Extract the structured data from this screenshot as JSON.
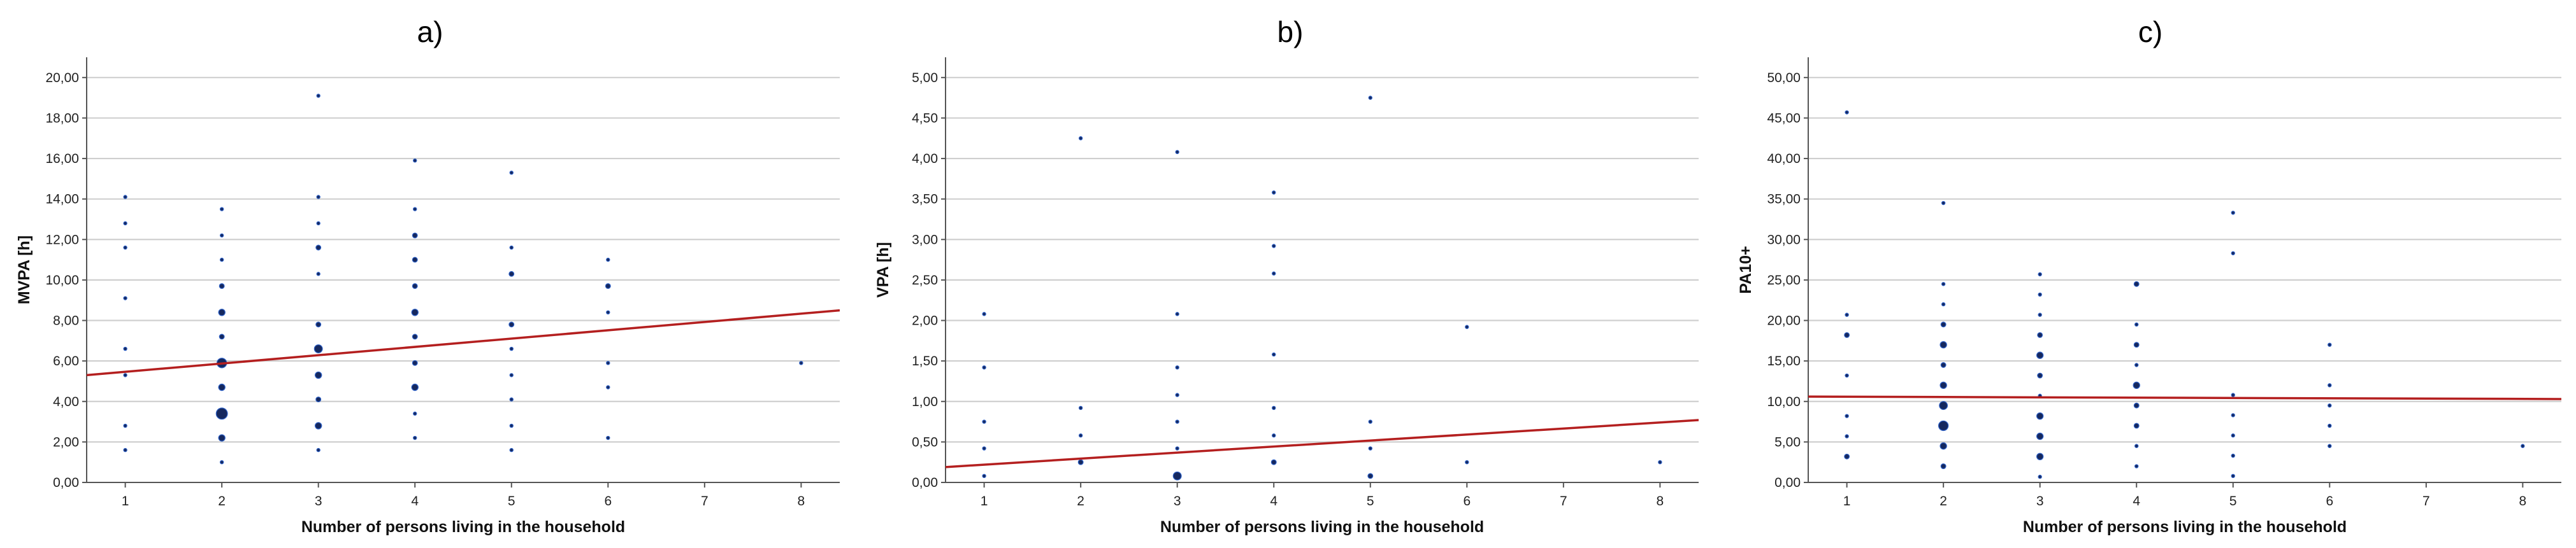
{
  "figure": {
    "background": "#ffffff",
    "point_fill": "#15285f",
    "point_stroke": "#2f62c8",
    "fit_line_color": "#b41f1f",
    "grid_color": "#cfcfcf"
  },
  "chart_data": [
    {
      "type": "scatter",
      "title": "a)",
      "xlabel": "Number of persons living in the household",
      "ylabel": "MVPA [h]",
      "xlim": [
        0.6,
        8.4
      ],
      "ylim": [
        0,
        21
      ],
      "x_ticks": [
        1,
        2,
        3,
        4,
        5,
        6,
        7,
        8
      ],
      "x_tick_labels": [
        "1",
        "2",
        "3",
        "4",
        "5",
        "6",
        "7",
        "8"
      ],
      "y_ticks": [
        0,
        2,
        4,
        6,
        8,
        10,
        12,
        14,
        16,
        18,
        20
      ],
      "y_tick_labels": [
        "0,00",
        "2,00",
        "4,00",
        "6,00",
        "8,00",
        "10,00",
        "12,00",
        "14,00",
        "16,00",
        "18,00",
        "20,00"
      ],
      "grid": "horizontal",
      "fit_line": {
        "x": [
          0.6,
          8.4
        ],
        "y": [
          5.3,
          8.5
        ]
      },
      "points": [
        {
          "x": 1,
          "y": 14.1,
          "n": 1
        },
        {
          "x": 1,
          "y": 12.8,
          "n": 1
        },
        {
          "x": 1,
          "y": 11.6,
          "n": 1
        },
        {
          "x": 1,
          "y": 9.1,
          "n": 1
        },
        {
          "x": 1,
          "y": 6.6,
          "n": 1
        },
        {
          "x": 1,
          "y": 5.3,
          "n": 1
        },
        {
          "x": 1,
          "y": 2.8,
          "n": 1
        },
        {
          "x": 1,
          "y": 1.6,
          "n": 1
        },
        {
          "x": 2,
          "y": 13.5,
          "n": 1
        },
        {
          "x": 2,
          "y": 12.2,
          "n": 1
        },
        {
          "x": 2,
          "y": 11.0,
          "n": 1
        },
        {
          "x": 2,
          "y": 9.7,
          "n": 2
        },
        {
          "x": 2,
          "y": 8.4,
          "n": 3
        },
        {
          "x": 2,
          "y": 7.2,
          "n": 2
        },
        {
          "x": 2,
          "y": 5.9,
          "n": 5
        },
        {
          "x": 2,
          "y": 4.7,
          "n": 3
        },
        {
          "x": 2,
          "y": 3.4,
          "n": 6
        },
        {
          "x": 2,
          "y": 2.2,
          "n": 3
        },
        {
          "x": 2,
          "y": 1.0,
          "n": 1
        },
        {
          "x": 3,
          "y": 19.1,
          "n": 1
        },
        {
          "x": 3,
          "y": 14.1,
          "n": 1
        },
        {
          "x": 3,
          "y": 12.8,
          "n": 1
        },
        {
          "x": 3,
          "y": 11.6,
          "n": 2
        },
        {
          "x": 3,
          "y": 10.3,
          "n": 1
        },
        {
          "x": 3,
          "y": 7.8,
          "n": 2
        },
        {
          "x": 3,
          "y": 6.6,
          "n": 4
        },
        {
          "x": 3,
          "y": 5.3,
          "n": 3
        },
        {
          "x": 3,
          "y": 4.1,
          "n": 2
        },
        {
          "x": 3,
          "y": 2.8,
          "n": 3
        },
        {
          "x": 3,
          "y": 1.6,
          "n": 1
        },
        {
          "x": 4,
          "y": 15.9,
          "n": 1
        },
        {
          "x": 4,
          "y": 13.5,
          "n": 1
        },
        {
          "x": 4,
          "y": 12.2,
          "n": 2
        },
        {
          "x": 4,
          "y": 11.0,
          "n": 2
        },
        {
          "x": 4,
          "y": 9.7,
          "n": 2
        },
        {
          "x": 4,
          "y": 8.4,
          "n": 3
        },
        {
          "x": 4,
          "y": 7.2,
          "n": 2
        },
        {
          "x": 4,
          "y": 5.9,
          "n": 2
        },
        {
          "x": 4,
          "y": 4.7,
          "n": 3
        },
        {
          "x": 4,
          "y": 3.4,
          "n": 1
        },
        {
          "x": 4,
          "y": 2.2,
          "n": 1
        },
        {
          "x": 5,
          "y": 15.3,
          "n": 1
        },
        {
          "x": 5,
          "y": 11.6,
          "n": 1
        },
        {
          "x": 5,
          "y": 10.3,
          "n": 2
        },
        {
          "x": 5,
          "y": 7.8,
          "n": 2
        },
        {
          "x": 5,
          "y": 6.6,
          "n": 1
        },
        {
          "x": 5,
          "y": 5.3,
          "n": 1
        },
        {
          "x": 5,
          "y": 4.1,
          "n": 1
        },
        {
          "x": 5,
          "y": 2.8,
          "n": 1
        },
        {
          "x": 5,
          "y": 1.6,
          "n": 1
        },
        {
          "x": 6,
          "y": 11.0,
          "n": 1
        },
        {
          "x": 6,
          "y": 9.7,
          "n": 2
        },
        {
          "x": 6,
          "y": 8.4,
          "n": 1
        },
        {
          "x": 6,
          "y": 5.9,
          "n": 1
        },
        {
          "x": 6,
          "y": 4.7,
          "n": 1
        },
        {
          "x": 6,
          "y": 2.2,
          "n": 1
        },
        {
          "x": 8,
          "y": 5.9,
          "n": 1
        }
      ]
    },
    {
      "type": "scatter",
      "title": "b)",
      "xlabel": "Number of persons living in the household",
      "ylabel": "VPA [h]",
      "xlim": [
        0.6,
        8.4
      ],
      "ylim": [
        0,
        5.25
      ],
      "x_ticks": [
        1,
        2,
        3,
        4,
        5,
        6,
        7,
        8
      ],
      "x_tick_labels": [
        "1",
        "2",
        "3",
        "4",
        "5",
        "6",
        "7",
        "8"
      ],
      "y_ticks": [
        0,
        0.5,
        1,
        1.5,
        2,
        2.5,
        3,
        3.5,
        4,
        4.5,
        5
      ],
      "y_tick_labels": [
        "0,00",
        "0,50",
        "1,00",
        "1,50",
        "2,00",
        "2,50",
        "3,00",
        "3,50",
        "4,00",
        "4,50",
        "5,00"
      ],
      "grid": "horizontal",
      "fit_line": {
        "x": [
          0.6,
          8.4
        ],
        "y": [
          0.19,
          0.77
        ]
      },
      "points": [
        {
          "x": 1,
          "y": 2.08,
          "n": 1
        },
        {
          "x": 1,
          "y": 1.42,
          "n": 1
        },
        {
          "x": 1,
          "y": 0.75,
          "n": 1
        },
        {
          "x": 1,
          "y": 0.42,
          "n": 1
        },
        {
          "x": 1,
          "y": 0.08,
          "n": 1
        },
        {
          "x": 2,
          "y": 4.25,
          "n": 1
        },
        {
          "x": 2,
          "y": 0.92,
          "n": 1
        },
        {
          "x": 2,
          "y": 0.58,
          "n": 1
        },
        {
          "x": 2,
          "y": 0.25,
          "n": 2
        },
        {
          "x": 3,
          "y": 4.08,
          "n": 1
        },
        {
          "x": 3,
          "y": 2.08,
          "n": 1
        },
        {
          "x": 3,
          "y": 1.42,
          "n": 1
        },
        {
          "x": 3,
          "y": 1.08,
          "n": 1
        },
        {
          "x": 3,
          "y": 0.75,
          "n": 1
        },
        {
          "x": 3,
          "y": 0.42,
          "n": 1
        },
        {
          "x": 3,
          "y": 0.08,
          "n": 4
        },
        {
          "x": 4,
          "y": 3.58,
          "n": 1
        },
        {
          "x": 4,
          "y": 2.92,
          "n": 1
        },
        {
          "x": 4,
          "y": 2.58,
          "n": 1
        },
        {
          "x": 4,
          "y": 1.58,
          "n": 1
        },
        {
          "x": 4,
          "y": 0.92,
          "n": 1
        },
        {
          "x": 4,
          "y": 0.58,
          "n": 1
        },
        {
          "x": 4,
          "y": 0.25,
          "n": 2
        },
        {
          "x": 5,
          "y": 4.75,
          "n": 1
        },
        {
          "x": 5,
          "y": 0.75,
          "n": 1
        },
        {
          "x": 5,
          "y": 0.42,
          "n": 1
        },
        {
          "x": 5,
          "y": 0.08,
          "n": 2
        },
        {
          "x": 6,
          "y": 1.92,
          "n": 1
        },
        {
          "x": 6,
          "y": 0.25,
          "n": 1
        },
        {
          "x": 8,
          "y": 0.25,
          "n": 1
        }
      ]
    },
    {
      "type": "scatter",
      "title": "c)",
      "xlabel": "Number of persons living in the household",
      "ylabel": "PA10+",
      "xlim": [
        0.6,
        8.4
      ],
      "ylim": [
        0,
        52.5
      ],
      "x_ticks": [
        1,
        2,
        3,
        4,
        5,
        6,
        7,
        8
      ],
      "x_tick_labels": [
        "1",
        "2",
        "3",
        "4",
        "5",
        "6",
        "7",
        "8"
      ],
      "y_ticks": [
        0,
        5,
        10,
        15,
        20,
        25,
        30,
        35,
        40,
        45,
        50
      ],
      "y_tick_labels": [
        "0,00",
        "5,00",
        "10,00",
        "15,00",
        "20,00",
        "25,00",
        "30,00",
        "35,00",
        "40,00",
        "45,00",
        "50,00"
      ],
      "grid": "horizontal",
      "fit_line": {
        "x": [
          0.6,
          8.4
        ],
        "y": [
          10.6,
          10.3
        ]
      },
      "points": [
        {
          "x": 1,
          "y": 45.7,
          "n": 1
        },
        {
          "x": 1,
          "y": 20.7,
          "n": 1
        },
        {
          "x": 1,
          "y": 18.2,
          "n": 2
        },
        {
          "x": 1,
          "y": 13.2,
          "n": 1
        },
        {
          "x": 1,
          "y": 8.2,
          "n": 1
        },
        {
          "x": 1,
          "y": 5.7,
          "n": 1
        },
        {
          "x": 1,
          "y": 3.2,
          "n": 2
        },
        {
          "x": 2,
          "y": 34.5,
          "n": 1
        },
        {
          "x": 2,
          "y": 24.5,
          "n": 1
        },
        {
          "x": 2,
          "y": 22.0,
          "n": 1
        },
        {
          "x": 2,
          "y": 19.5,
          "n": 2
        },
        {
          "x": 2,
          "y": 17.0,
          "n": 3
        },
        {
          "x": 2,
          "y": 14.5,
          "n": 2
        },
        {
          "x": 2,
          "y": 12.0,
          "n": 3
        },
        {
          "x": 2,
          "y": 9.5,
          "n": 4
        },
        {
          "x": 2,
          "y": 7.0,
          "n": 5
        },
        {
          "x": 2,
          "y": 4.5,
          "n": 3
        },
        {
          "x": 2,
          "y": 2.0,
          "n": 2
        },
        {
          "x": 3,
          "y": 25.7,
          "n": 1
        },
        {
          "x": 3,
          "y": 23.2,
          "n": 1
        },
        {
          "x": 3,
          "y": 20.7,
          "n": 1
        },
        {
          "x": 3,
          "y": 18.2,
          "n": 2
        },
        {
          "x": 3,
          "y": 15.7,
          "n": 3
        },
        {
          "x": 3,
          "y": 13.2,
          "n": 2
        },
        {
          "x": 3,
          "y": 10.7,
          "n": 1
        },
        {
          "x": 3,
          "y": 8.2,
          "n": 3
        },
        {
          "x": 3,
          "y": 5.7,
          "n": 3
        },
        {
          "x": 3,
          "y": 3.2,
          "n": 3
        },
        {
          "x": 3,
          "y": 0.7,
          "n": 1
        },
        {
          "x": 4,
          "y": 24.5,
          "n": 2
        },
        {
          "x": 4,
          "y": 19.5,
          "n": 1
        },
        {
          "x": 4,
          "y": 17.0,
          "n": 2
        },
        {
          "x": 4,
          "y": 14.5,
          "n": 1
        },
        {
          "x": 4,
          "y": 12.0,
          "n": 3
        },
        {
          "x": 4,
          "y": 9.5,
          "n": 2
        },
        {
          "x": 4,
          "y": 7.0,
          "n": 2
        },
        {
          "x": 4,
          "y": 4.5,
          "n": 1
        },
        {
          "x": 4,
          "y": 2.0,
          "n": 1
        },
        {
          "x": 5,
          "y": 33.3,
          "n": 1
        },
        {
          "x": 5,
          "y": 28.3,
          "n": 1
        },
        {
          "x": 5,
          "y": 10.8,
          "n": 1
        },
        {
          "x": 5,
          "y": 8.3,
          "n": 1
        },
        {
          "x": 5,
          "y": 5.8,
          "n": 1
        },
        {
          "x": 5,
          "y": 3.3,
          "n": 1
        },
        {
          "x": 5,
          "y": 0.8,
          "n": 1
        },
        {
          "x": 6,
          "y": 17.0,
          "n": 1
        },
        {
          "x": 6,
          "y": 12.0,
          "n": 1
        },
        {
          "x": 6,
          "y": 9.5,
          "n": 1
        },
        {
          "x": 6,
          "y": 7.0,
          "n": 1
        },
        {
          "x": 6,
          "y": 4.5,
          "n": 1
        },
        {
          "x": 8,
          "y": 4.5,
          "n": 1
        }
      ]
    }
  ]
}
